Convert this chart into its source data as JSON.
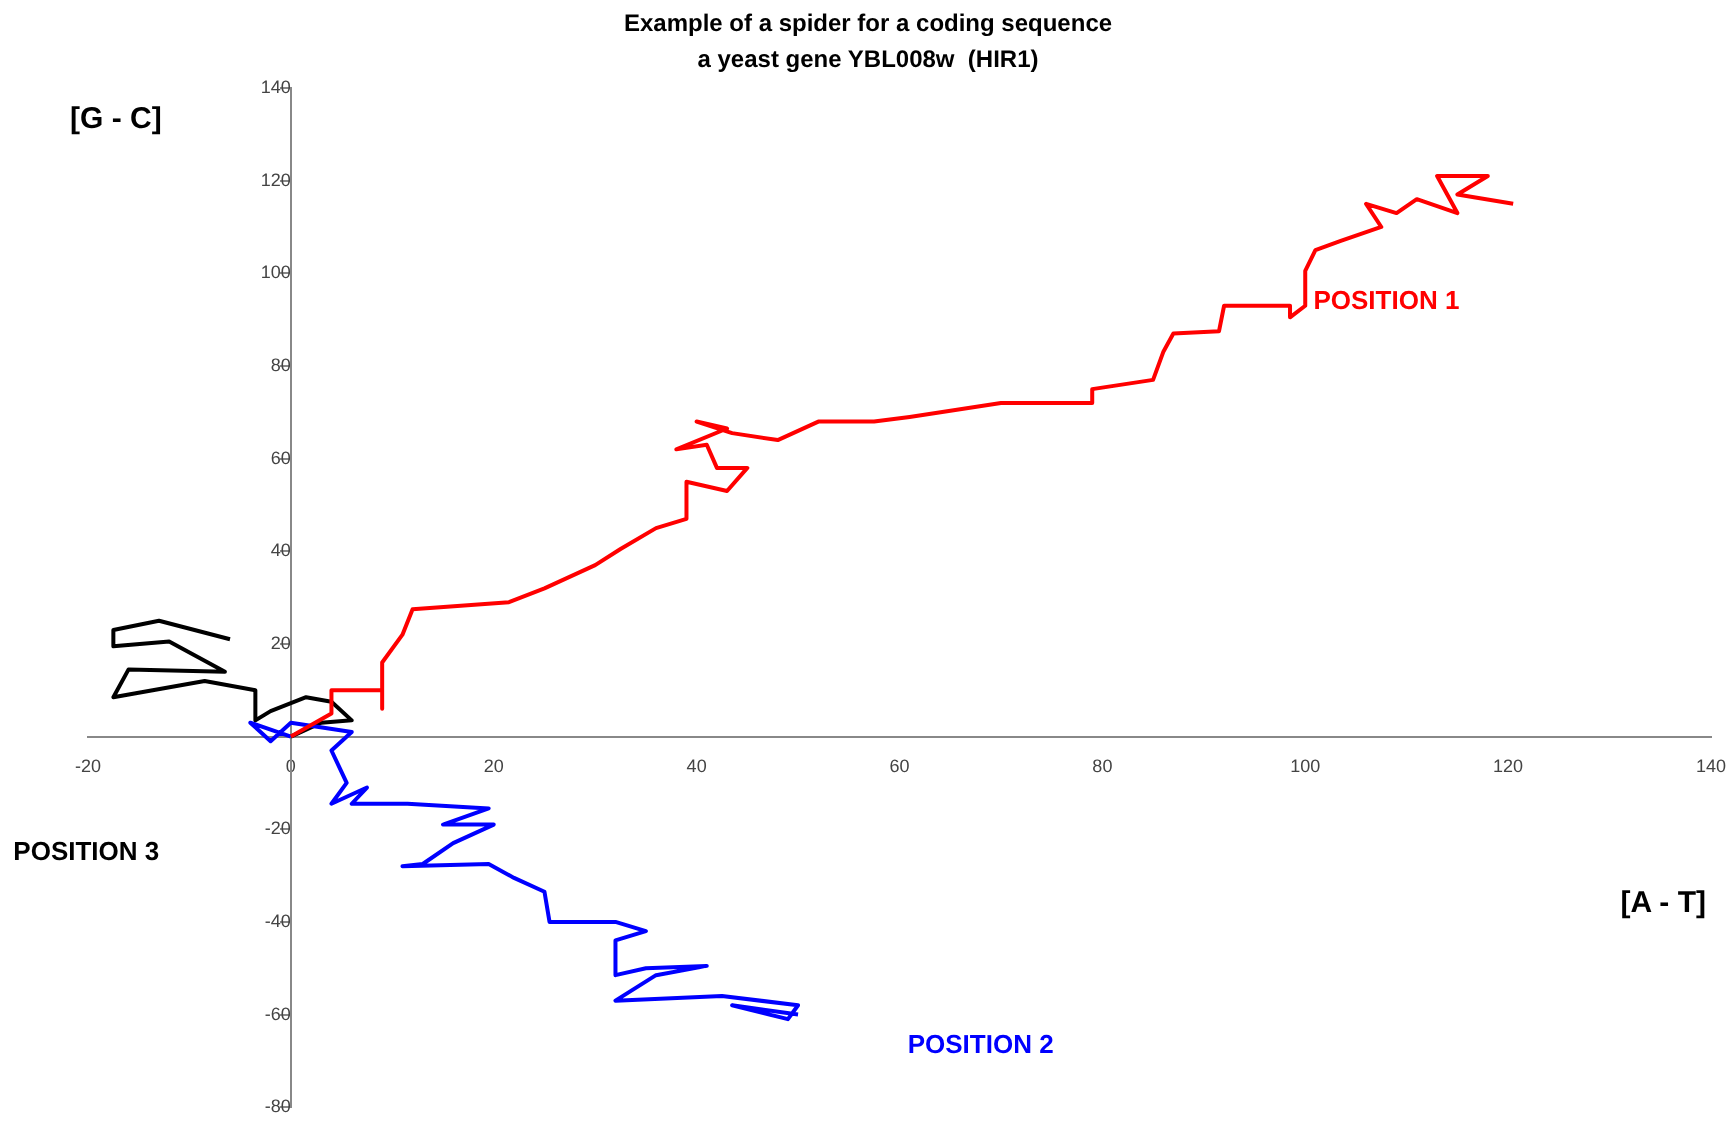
{
  "chart_data": {
    "type": "line",
    "title": "Example of a spider for a coding sequence\na yeast gene YBL008w  (HIR1)",
    "xlabel": "[A - T]",
    "ylabel": "[G - C]",
    "xlim": [
      -20,
      140
    ],
    "xticks": [
      -20,
      0,
      20,
      40,
      60,
      80,
      100,
      120,
      140
    ],
    "ylim": [
      -80,
      140
    ],
    "yticks": [
      -80,
      -60,
      -40,
      -20,
      {
        "value": 0,
        "label": null
      },
      20,
      40,
      60,
      80,
      100,
      120,
      140
    ],
    "grid": false,
    "legend": false,
    "marker": "none",
    "line_style": "solid",
    "series": [
      {
        "name": "POSITION 1",
        "color": "#ff0000",
        "x": [
          0,
          4,
          4,
          9,
          9,
          9,
          11,
          12,
          21.5,
          25,
          30,
          32.5,
          36,
          39,
          39,
          43,
          45,
          42,
          41,
          38,
          43,
          40,
          43.5,
          48,
          52,
          57.5,
          61,
          70,
          79,
          79,
          85,
          86,
          87,
          91.5,
          92,
          98.5,
          98.5,
          100,
          100,
          101,
          103.5,
          107.5,
          106,
          109,
          111,
          115,
          113,
          118,
          115,
          120.5
        ],
        "values": [
          0,
          5,
          10,
          10,
          6,
          16,
          22,
          27.5,
          29,
          32,
          37,
          40.5,
          45,
          47,
          55,
          53,
          58,
          58,
          63,
          62,
          66.5,
          68,
          65.5,
          64,
          68,
          68,
          69,
          72,
          72,
          75,
          77,
          83,
          87,
          87.5,
          93,
          93,
          90.5,
          93,
          100.5,
          105,
          107,
          110,
          115,
          113,
          116,
          113,
          121,
          121,
          117,
          115
        ]
      },
      {
        "name": "POSITION 2",
        "color": "#0000ff",
        "x": [
          0,
          -4,
          -2,
          0,
          6,
          4,
          5.5,
          4,
          7.5,
          6,
          11.5,
          19.5,
          15,
          20,
          16,
          13,
          11,
          19.5,
          22,
          25,
          25.5,
          32,
          35,
          32,
          32,
          35,
          41,
          36,
          32,
          42.5,
          50,
          49,
          43.5,
          50
        ],
        "values": [
          0,
          3,
          -1,
          3,
          1,
          -3,
          -10,
          -14.5,
          -11,
          -14.5,
          -14.5,
          -15.5,
          -19,
          -19,
          -23,
          -27.5,
          -28,
          -27.5,
          -30.5,
          -33.5,
          -40,
          -40,
          -42,
          -44,
          -51.5,
          -50,
          -49.5,
          -51.5,
          -57,
          -56,
          -58,
          -61,
          -58,
          -60
        ]
      },
      {
        "name": "POSITION 3",
        "color": "#000000",
        "x": [
          0,
          3,
          6,
          4,
          1.5,
          -2,
          -3.5,
          -3.5,
          -8.5,
          -17.5,
          -16,
          -6.5,
          -12,
          -17.5,
          -17.5,
          -13,
          -6
        ],
        "values": [
          0,
          3,
          3.5,
          7.5,
          8.5,
          5.5,
          3.5,
          10,
          12,
          8.5,
          14.5,
          14,
          20.5,
          19.5,
          23,
          25,
          21
        ]
      }
    ]
  }
}
